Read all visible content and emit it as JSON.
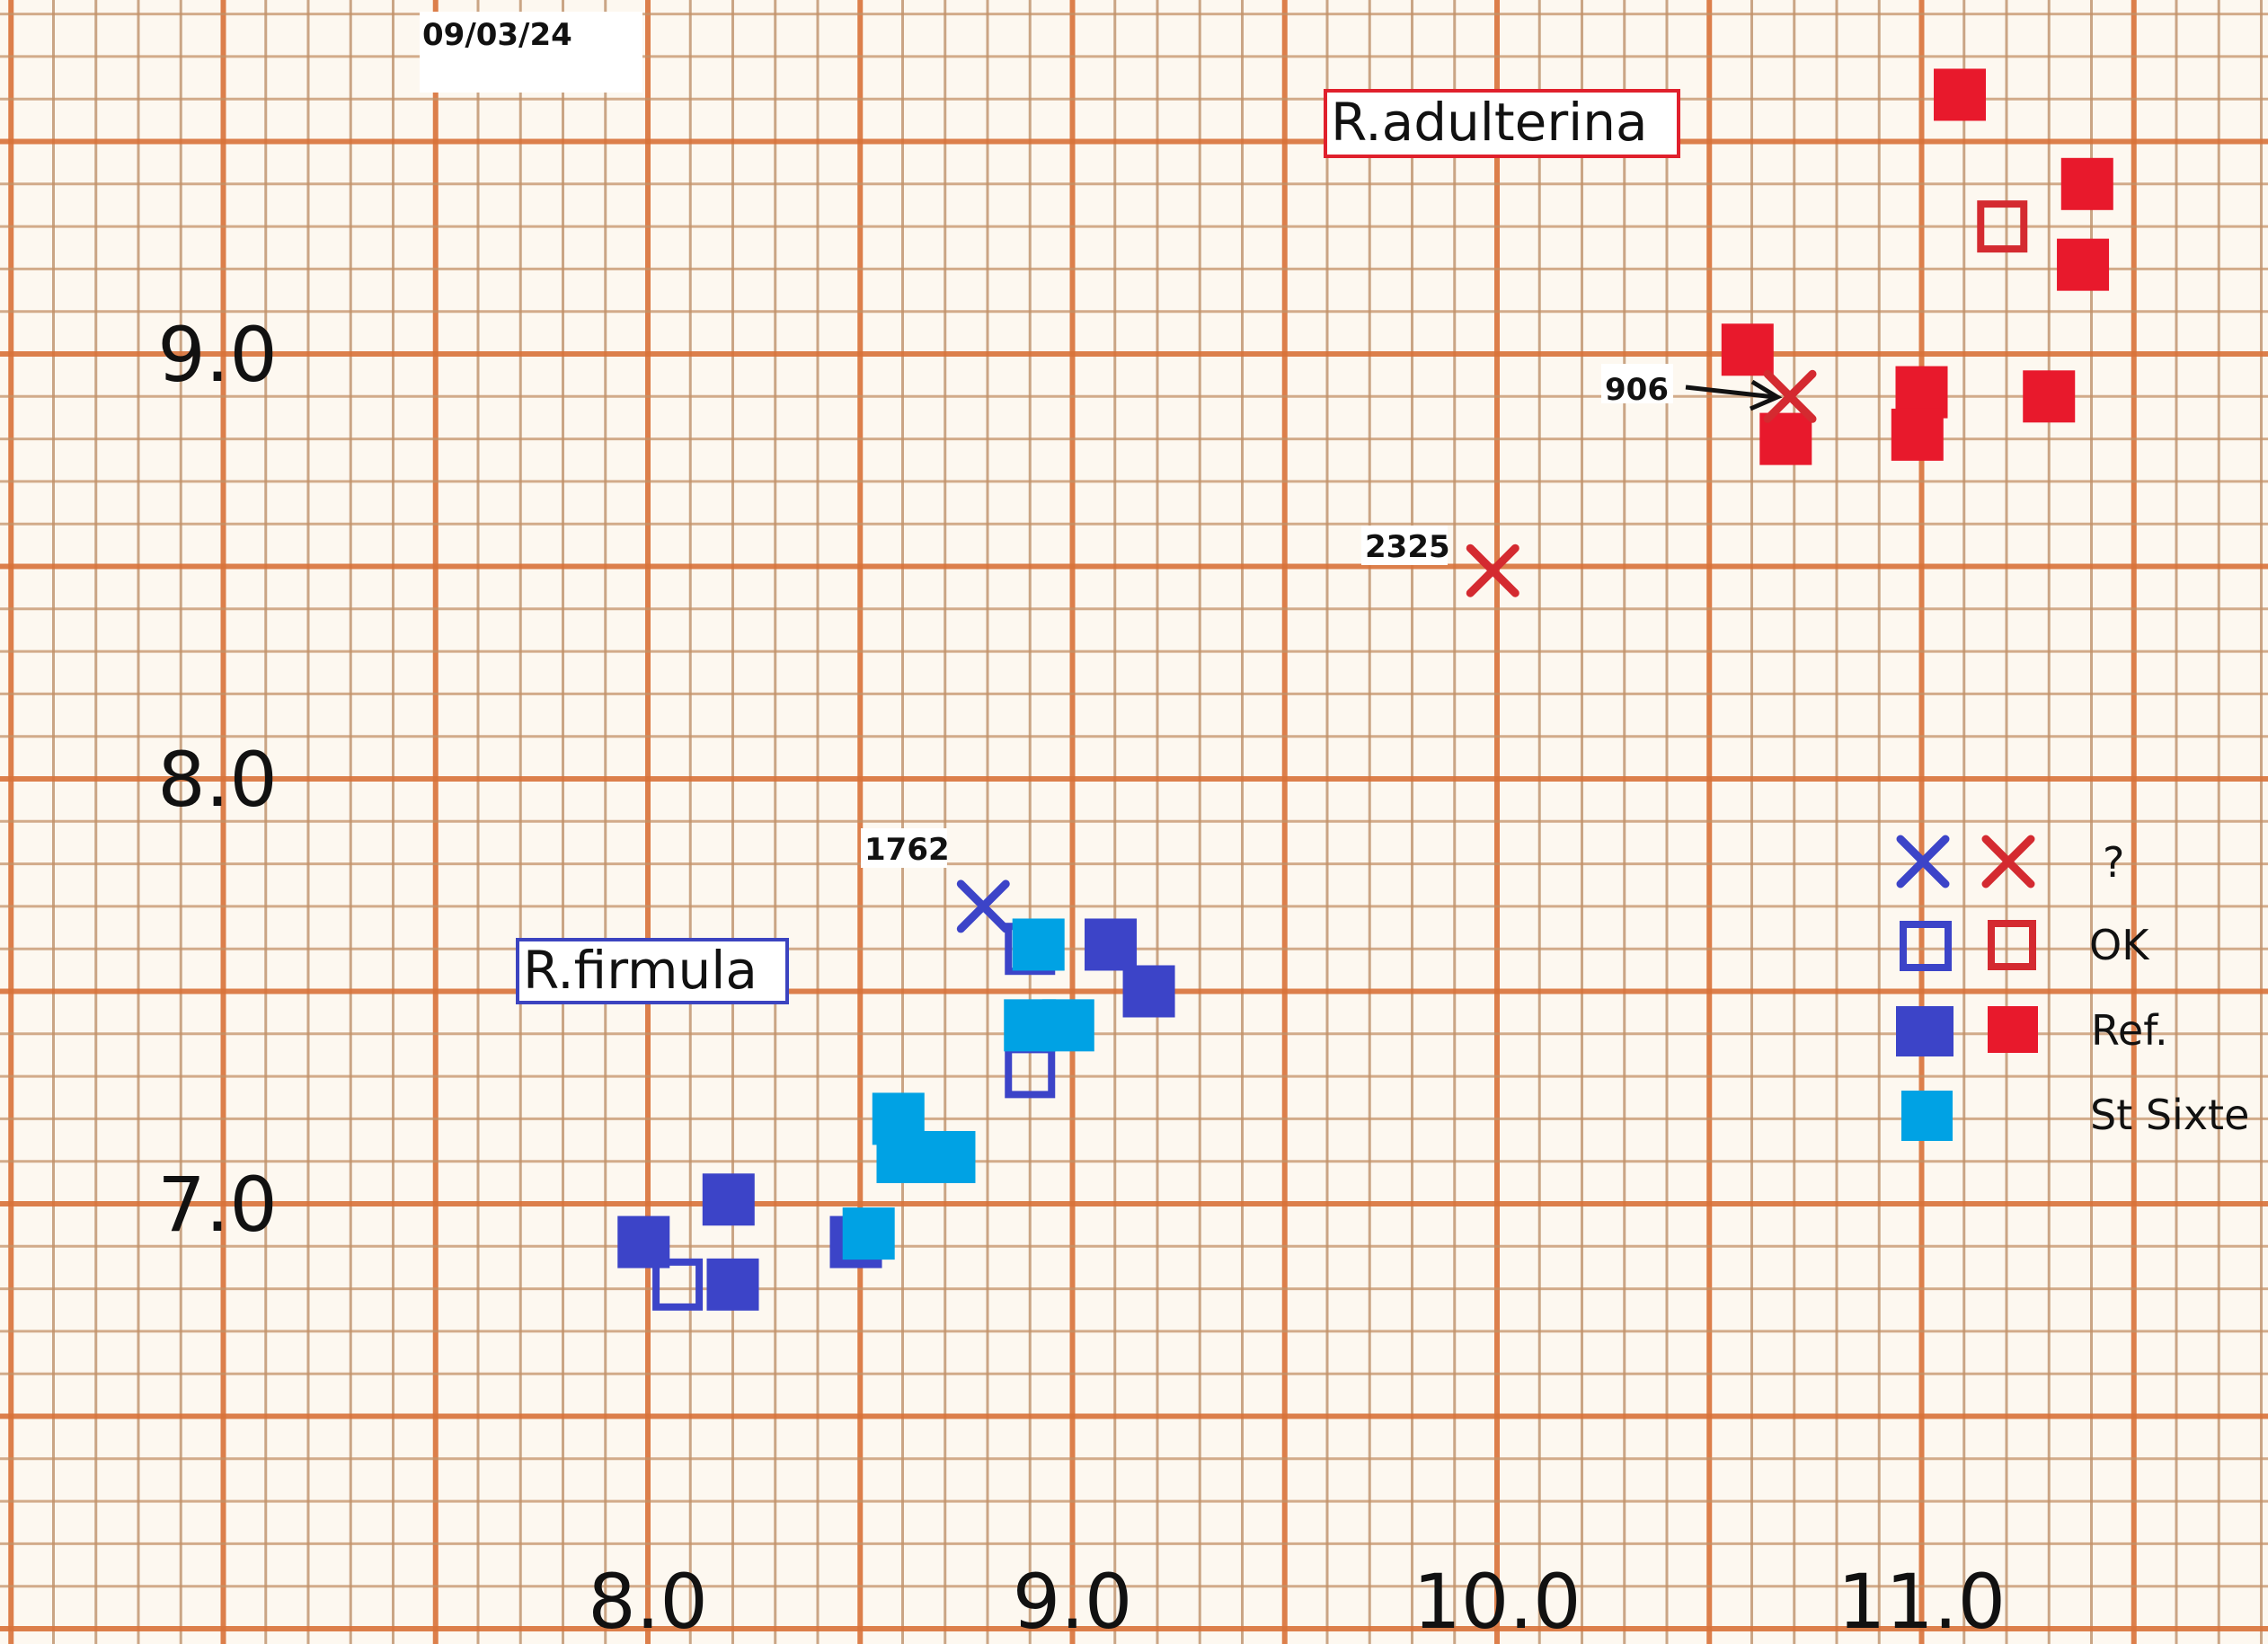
{
  "chart_data": {
    "type": "scatter",
    "date_label": "09/03/24",
    "xlim": [
      6.47,
      11.82
    ],
    "ylim": [
      5.96,
      9.83
    ],
    "grid": true,
    "grid_minor_step": 0.1,
    "grid_major_step": 0.5,
    "x_ticks": [
      8.0,
      9.0,
      10.0,
      11.0
    ],
    "x_tick_labels": [
      "8.0",
      "9.0",
      "10.0",
      "11.0"
    ],
    "y_ticks": [
      9.0,
      8.0,
      7.0
    ],
    "y_tick_labels": [
      "9.0",
      "8.0",
      "7.0"
    ],
    "xlabel": "",
    "ylabel": "",
    "group_labels": [
      {
        "text": "R.adulterina",
        "color": "#e0202c",
        "x": 10.35,
        "y": 9.46
      },
      {
        "text": "R.firmula",
        "color": "#3c44c0",
        "x": 8.0,
        "y": 7.44
      }
    ],
    "colors": {
      "blue": "#3c44c8",
      "red": "#e8192c",
      "cyan": "#00a2e4",
      "grid": "#d9733a"
    },
    "series": [
      {
        "name": "R.firmula Ref.",
        "marker": "filled-square",
        "color": "#3c44c8",
        "points": [
          [
            9.09,
            7.61
          ],
          [
            9.18,
            7.5
          ],
          [
            7.99,
            6.91
          ],
          [
            8.19,
            7.01
          ],
          [
            8.2,
            6.81
          ],
          [
            8.49,
            6.91
          ]
        ]
      },
      {
        "name": "R.firmula OK",
        "marker": "open-square",
        "color": "#3c44c8",
        "points": [
          [
            8.07,
            6.81
          ],
          [
            8.9,
            7.31
          ],
          [
            8.9,
            7.6
          ]
        ]
      },
      {
        "name": "R.firmula ?",
        "marker": "cross",
        "color": "#3c44c8",
        "points": [
          [
            8.79,
            7.7
          ]
        ],
        "labels": [
          "1762"
        ]
      },
      {
        "name": "St Sixte",
        "marker": "filled-square",
        "color": "#00a2e4",
        "points": [
          [
            8.92,
            7.61
          ],
          [
            8.9,
            7.42
          ],
          [
            8.99,
            7.42
          ],
          [
            8.59,
            7.2
          ],
          [
            8.6,
            7.11
          ],
          [
            8.71,
            7.11
          ],
          [
            8.52,
            6.93
          ]
        ]
      },
      {
        "name": "R.adulterina Ref.",
        "marker": "filled-square",
        "color": "#e8192c",
        "points": [
          [
            11.09,
            9.61
          ],
          [
            11.39,
            9.4
          ],
          [
            11.38,
            9.21
          ],
          [
            10.59,
            9.01
          ],
          [
            10.68,
            8.8
          ],
          [
            11.0,
            8.91
          ],
          [
            10.99,
            8.81
          ],
          [
            11.3,
            8.9
          ]
        ]
      },
      {
        "name": "R.adulterina OK",
        "marker": "open-square",
        "color": "#d42a30",
        "points": [
          [
            11.19,
            9.3
          ]
        ]
      },
      {
        "name": "R.adulterina ?",
        "marker": "cross",
        "color": "#d42a30",
        "points": [
          [
            10.69,
            8.9
          ],
          [
            9.99,
            8.49
          ]
        ],
        "labels": [
          "906",
          "2325"
        ]
      }
    ],
    "legend": {
      "placement": "right",
      "rows": [
        {
          "marker": "cross",
          "label": "?"
        },
        {
          "marker": "open-square",
          "label": "OK"
        },
        {
          "marker": "filled-square",
          "label": "Ref."
        },
        {
          "marker": "filled-square-cyan",
          "label": "St Sixte"
        }
      ]
    }
  }
}
